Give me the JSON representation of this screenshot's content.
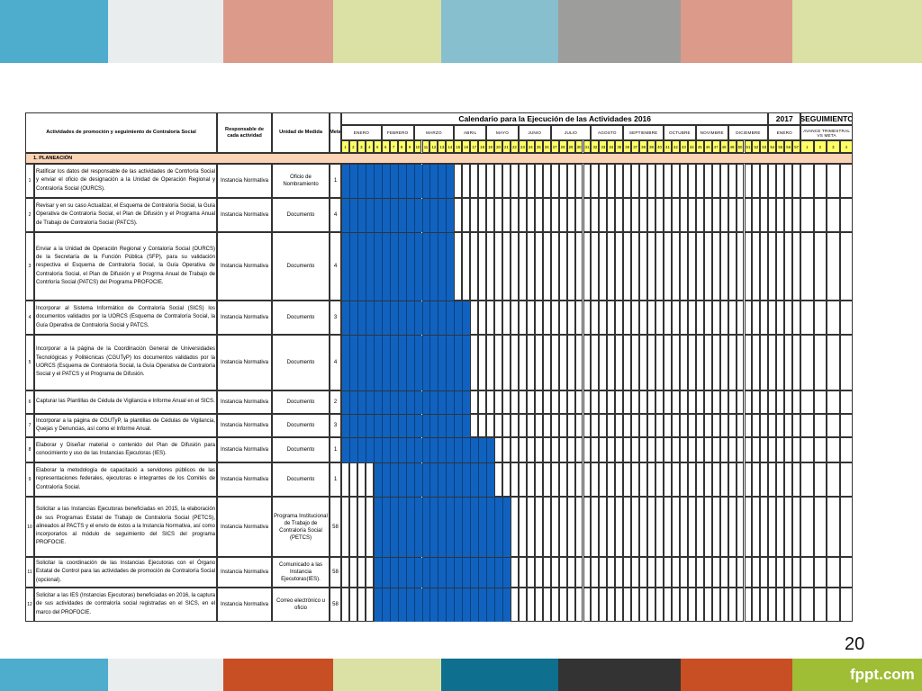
{
  "colors": {
    "stripes_top": [
      "#4eaccd",
      "#e9edee",
      "#dc9a8b",
      "#dbe0a4",
      "#88bfcf",
      "#9d9e9c",
      "#dc9a8b",
      "#dbe0a4"
    ],
    "stripes_bottom": [
      "#4eaccd",
      "#e9edee",
      "#c84e24",
      "#dbe0a4",
      "#0f6f8f",
      "#333333",
      "#c84e24",
      "#9fbd35"
    ],
    "bar": "#1062be",
    "week_row": "#ffff66",
    "section_row": "#fbd3b5"
  },
  "headers": {
    "activities": "Actividades de promoción y seguimiento de Contraloría Social",
    "responsible": "Responsable de cada actividad",
    "unit": "Unidad de Medida",
    "goal": "Meta",
    "calendar_title": "Calendario para la Ejecución de las Actividades 2016",
    "year_2017": "2017",
    "followup": "SEGUIMIENTO",
    "followup_sub": "AVANCE TRIMESTRAL VS META",
    "month_2017": "ENERO"
  },
  "months": [
    {
      "label": "ENERO",
      "weeks": 5
    },
    {
      "label": "FEBRERO",
      "weeks": 4
    },
    {
      "label": "MARZO",
      "weeks": 5
    },
    {
      "label": "ABRIL",
      "weeks": 4
    },
    {
      "label": "MAYO",
      "weeks": 4
    },
    {
      "label": "JUNIO",
      "weeks": 4
    },
    {
      "label": "JULIO",
      "weeks": 5
    },
    {
      "label": "AGOSTO",
      "weeks": 4
    },
    {
      "label": "SEPTIEMBRE",
      "weeks": 5
    },
    {
      "label": "OCTUBRE",
      "weeks": 4
    },
    {
      "label": "NOVIMBRE",
      "weeks": 4
    },
    {
      "label": "DICIEMBRE",
      "weeks": 5
    },
    {
      "label": "ENERO",
      "weeks": 4
    }
  ],
  "week_numbers": [
    "1",
    "2",
    "3",
    "4",
    "5",
    "6",
    "7",
    "8",
    "9",
    "10",
    "11",
    "12",
    "13",
    "14",
    "15",
    "16",
    "17",
    "18",
    "19",
    "20",
    "21",
    "22",
    "23",
    "24",
    "25",
    "26",
    "27",
    "28",
    "29",
    "30",
    "31",
    "32",
    "33",
    "34",
    "35",
    "36",
    "37",
    "38",
    "39",
    "40",
    "41",
    "42",
    "43",
    "44",
    "45",
    "46",
    "47",
    "48",
    "49",
    "50",
    "51",
    "52",
    "53",
    "54",
    "55",
    "56",
    "57"
  ],
  "quarters": [
    "1",
    "2",
    "3",
    "4"
  ],
  "section": "1. PLANEACIÓN",
  "rows": [
    {
      "num": "1",
      "activity": "Ratificar los datos del responsable de las actividades de Contrloría Social y enviar el oficio de designación a la Unidad de Operación Regional y Contraloría Social (OURCS).",
      "responsible": "Instancia Normativa",
      "unit": "Oficio de Nombramiento",
      "goal": "1",
      "start_week": 1,
      "end_week": 14
    },
    {
      "num": "2",
      "activity": "Revisar y en su caso Actualizar, el Esquema de Contraloría Social, la Guía Operativa de Contraloría Social, el Plan de Difusión y el Programa Anual de Trabajo de Contraloría Social (PATCS).",
      "responsible": "Instancia Normativa",
      "unit": "Documento",
      "goal": "4",
      "start_week": 1,
      "end_week": 14
    },
    {
      "num": "3",
      "activity": "Enviar a la Unidad de Operación Regional y Contaloría Social (OURCS) de la Secretaría de la Función Pública (SFP), para su validación respectiva el Esquema de Contraloría Social, la Guía Operativa de Contraloría Social, el Plan de Difusión y el Progrma Anual de Trabajo de Contrloría Social (PATCS) del Programa PROFOCIE.",
      "responsible": "Instancia Normativa",
      "unit": "Documento",
      "goal": "4",
      "start_week": 1,
      "end_week": 14
    },
    {
      "num": "4",
      "activity": "Incorporar al Sistema Informático de Contraloría Social (SICS) los documentos validados por la UORCS (Esquema de Contraloría Social, la Guía Operativa de Contraloría Social y PATCS.",
      "responsible": "Instancia Normativa",
      "unit": "Documento",
      "goal": "3",
      "start_week": 1,
      "end_week": 16
    },
    {
      "num": "5",
      "activity": "Incorporar a la página de la Coordinación General de Universidades Tecnológicas y Politécnicas (CGUTyP) los documentos validados por la UORCS (Esquema de Contraloría Social, la Guía Operativa de Contraloría Social y el PATCS y el Programa de Difusión.",
      "responsible": "Instancia Normativa",
      "unit": "Documento",
      "goal": "4",
      "start_week": 1,
      "end_week": 16
    },
    {
      "num": "6",
      "activity": "Capturar las Plantillas de Cédula de Vigilancia e Informe Anual en el SICS.",
      "responsible": "Instancia Normativa",
      "unit": "Documento",
      "goal": "2",
      "start_week": 1,
      "end_week": 16
    },
    {
      "num": "7",
      "activity": "Incorporar a la página de CGUTyP, la plantillas de Cédulas de Vigilancia, Quejas y Denuncias, así como el Informe Anual.",
      "responsible": "Instancia Normativa",
      "unit": "Documento",
      "goal": "3",
      "start_week": 1,
      "end_week": 16
    },
    {
      "num": "8",
      "activity": "Elaborar y Diseñar material o contenido del Plan de Difusión para conocimiento y uso de las Instancias Ejecutoras (IES).",
      "responsible": "Instancia Normativa",
      "unit": "Documento",
      "goal": "1",
      "start_week": 1,
      "end_week": 19
    },
    {
      "num": "9",
      "activity": "Elaborar la metodología de capacitació a servidores públicos de las representaciones federales, ejecutoras e integrantes de los Comités de Contraloría Social.",
      "responsible": "Instancia Normativa",
      "unit": "Documento",
      "goal": "1",
      "start_week": 5,
      "end_week": 19
    },
    {
      "num": "10",
      "activity": "Solicitar a las Instancias Ejecutoras beneficiadas en 2015, la elaboración de sus Programas Estatal de Trabajo de Contraloría Social (PETCS), alineados al PACTS y el envío de éstos a la Instancia Normativa, así como incorporarlos al módulo de seguimiento del SICS del programa PROFOCIE.",
      "responsible": "Instancia Normativa",
      "unit": "Programa Institucional de Trabajo de Contraloría Social (PETCS)",
      "goal": "58",
      "start_week": 5,
      "end_week": 21
    },
    {
      "num": "11",
      "activity": "Solicitar la coordinación de las Instancias Ejecutoras con el Órgano Estatal de Control para las actividades de promoción de Contraloría Social (opcional).",
      "responsible": "Instancia Normativa",
      "unit": "Comunicado a las Instancia Ejecutoras(IES).",
      "goal": "58",
      "start_week": 5,
      "end_week": 21
    },
    {
      "num": "12",
      "activity": "Solicitar a las IES (Instancias Ejecutoras) beneficiadas en 2016, la captura de sus actividades de contraloría social registradas en el SICS, en el marco del PROFOCIE.",
      "responsible": "Instancia Normativa",
      "unit": "Correo electrónico u oficio",
      "goal": "58",
      "start_week": 5,
      "end_week": 21
    }
  ],
  "page_number": "20",
  "brand": "fppt.com"
}
